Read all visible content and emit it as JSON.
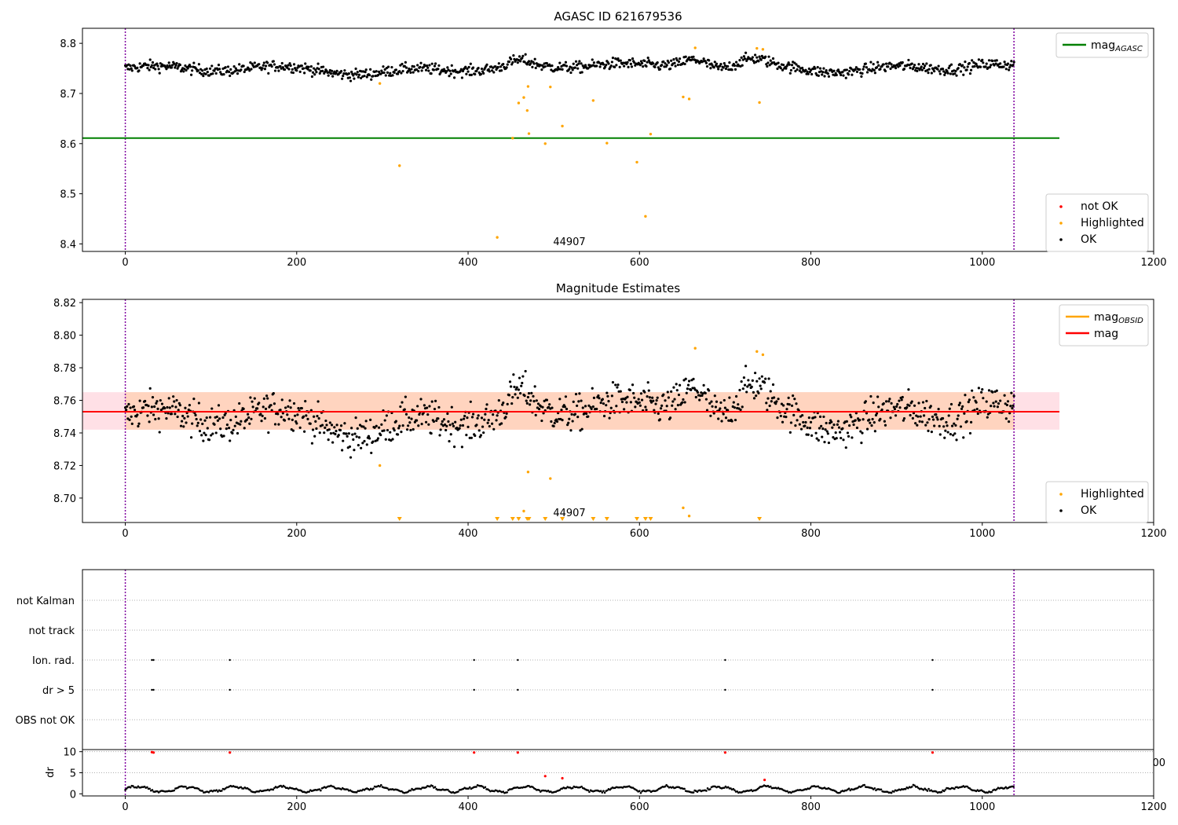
{
  "chart_data": [
    {
      "type": "scatter",
      "title": "AGASC ID 621679536",
      "xlim": [
        -50,
        1200
      ],
      "ylim": [
        8.385,
        8.83
      ],
      "x_ticks": [
        0,
        200,
        400,
        600,
        800,
        1000,
        1200
      ],
      "y_ticks": [
        8.4,
        8.5,
        8.6,
        8.7,
        8.8
      ],
      "y_tick_labels": [
        "8.4",
        "8.5",
        "8.6",
        "8.7",
        "8.8"
      ],
      "vlines": [
        0,
        1037
      ],
      "hlines": [
        {
          "name": "mag_AGASC",
          "y": 8.611,
          "x_end": 1090,
          "color": "#008000"
        }
      ],
      "annotation": {
        "text": "44907",
        "x": 517,
        "y": 8.385
      },
      "legend_top": [
        {
          "label": "mag",
          "subscript": "AGASC",
          "color": "#008000",
          "kind": "line"
        }
      ],
      "legend_bottom": [
        {
          "label": "not OK",
          "color": "#ff0000",
          "kind": "dot"
        },
        {
          "label": "Highlighted",
          "color": "#ffa500",
          "kind": "dot"
        },
        {
          "label": "OK",
          "color": "#000000",
          "kind": "dot"
        }
      ],
      "series": [
        {
          "name": "OK",
          "color": "#000000",
          "generated_from": "main_band",
          "y_center": 8.75,
          "y_spread": 0.012,
          "x_range": [
            0,
            1037
          ]
        },
        {
          "name": "Highlighted",
          "color": "#ffa500",
          "points": [
            [
              297,
              8.72
            ],
            [
              320,
              8.556
            ],
            [
              434,
              8.413
            ],
            [
              452,
              8.611
            ],
            [
              459,
              8.681
            ],
            [
              465,
              8.692
            ],
            [
              469,
              8.666
            ],
            [
              470,
              8.714
            ],
            [
              471,
              8.62
            ],
            [
              490,
              8.6
            ],
            [
              496,
              8.713
            ],
            [
              510,
              8.635
            ],
            [
              546,
              8.686
            ],
            [
              562,
              8.601
            ],
            [
              597,
              8.563
            ],
            [
              607,
              8.455
            ],
            [
              613,
              8.619
            ],
            [
              651,
              8.693
            ],
            [
              658,
              8.689
            ],
            [
              665,
              8.791
            ],
            [
              737,
              8.79
            ],
            [
              740,
              8.682
            ],
            [
              744,
              8.788
            ]
          ]
        }
      ]
    },
    {
      "type": "scatter",
      "title": "Magnitude Estimates",
      "xlim": [
        -50,
        1200
      ],
      "ylim": [
        8.685,
        8.822
      ],
      "x_ticks": [
        0,
        200,
        400,
        600,
        800,
        1000,
        1200
      ],
      "y_ticks": [
        8.7,
        8.72,
        8.74,
        8.76,
        8.78,
        8.8,
        8.82
      ],
      "y_tick_labels": [
        "8.70",
        "8.72",
        "8.74",
        "8.76",
        "8.78",
        "8.80",
        "8.82"
      ],
      "vlines": [
        0,
        1037
      ],
      "mag_line": {
        "name": "mag",
        "y": 8.753,
        "color": "#ff0000"
      },
      "band_pink": {
        "y_low": 8.742,
        "y_high": 8.765,
        "x_range": [
          -50,
          1090
        ]
      },
      "band_orange": {
        "y_low": 8.742,
        "y_high": 8.765,
        "x_range": [
          0,
          1037
        ]
      },
      "annotation": {
        "text": "44907",
        "x": 517,
        "y": 8.685
      },
      "legend_top": [
        {
          "label": "mag",
          "subscript": "OBSID",
          "color": "#ffa500",
          "kind": "line"
        },
        {
          "label": "mag",
          "color": "#ff0000",
          "kind": "line"
        }
      ],
      "legend_bottom": [
        {
          "label": "Highlighted",
          "color": "#ffa500",
          "kind": "dot"
        },
        {
          "label": "OK",
          "color": "#000000",
          "kind": "dot"
        }
      ],
      "series": [
        {
          "name": "OK",
          "color": "#000000",
          "generated_from": "main_band",
          "y_center": 8.75,
          "y_spread": 0.012,
          "x_range": [
            0,
            1037
          ]
        },
        {
          "name": "Highlighted",
          "color": "#ffa500",
          "points": [
            [
              297,
              8.72
            ],
            [
              465,
              8.692
            ],
            [
              470,
              8.716
            ],
            [
              496,
              8.712
            ],
            [
              651,
              8.694
            ],
            [
              658,
              8.689
            ],
            [
              665,
              8.792
            ],
            [
              737,
              8.79
            ],
            [
              744,
              8.788
            ]
          ]
        },
        {
          "name": "Highlighted (below range)",
          "color": "#ffa500",
          "marker": "triangle-down",
          "x": [
            320,
            434,
            452,
            459,
            469,
            471,
            490,
            510,
            546,
            562,
            597,
            607,
            613,
            740
          ]
        }
      ]
    },
    {
      "type": "scatter",
      "title": "",
      "xlim": [
        -50,
        1200
      ],
      "categories": [
        "not Kalman",
        "not track",
        "Ion. rad.",
        "dr > 5",
        "OBS not OK"
      ],
      "vlines": [
        0,
        1037
      ],
      "series": [
        {
          "name": "Ion. rad.",
          "color": "#000000",
          "x": [
            31,
            33,
            122,
            407,
            458,
            700,
            942
          ]
        },
        {
          "name": "dr > 5",
          "color": "#000000",
          "x": [
            31,
            33,
            122,
            407,
            458,
            700,
            942
          ]
        }
      ]
    },
    {
      "type": "scatter",
      "title": "",
      "ylabel": "dr",
      "xlim": [
        -50,
        1200
      ],
      "ylim": [
        -0.5,
        10.5
      ],
      "x_ticks": [
        0,
        200,
        400,
        600,
        800,
        1000,
        1200
      ],
      "y_ticks": [
        0,
        5,
        10
      ],
      "y_tick_labels": [
        "0",
        "5",
        "10"
      ],
      "vlines": [
        0,
        1037
      ],
      "overflow_label": "00",
      "series": [
        {
          "name": "dr",
          "color": "#000000",
          "generated_from": "dr_band",
          "y_range": [
            0.3,
            2.2
          ],
          "x_range": [
            0,
            1037
          ]
        },
        {
          "name": "dr high",
          "color": "#ff0000",
          "points": [
            [
              31,
              9.9
            ],
            [
              33,
              9.8
            ],
            [
              122,
              9.8
            ],
            [
              407,
              9.8
            ],
            [
              458,
              9.8
            ],
            [
              700,
              9.8
            ],
            [
              942,
              9.8
            ],
            [
              490,
              4.2
            ],
            [
              510,
              3.7
            ],
            [
              746,
              3.3
            ]
          ]
        }
      ]
    }
  ]
}
